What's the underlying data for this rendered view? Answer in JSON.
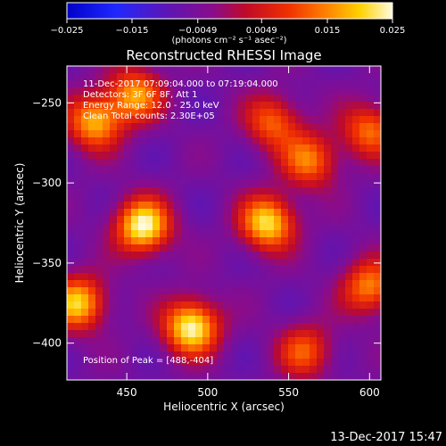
{
  "colorbar": {
    "tick_labels": [
      "−0.025",
      "−0.015",
      "−0.0049",
      "0.0049",
      "0.015",
      "0.025"
    ],
    "tick_values": [
      -0.025,
      -0.015,
      -0.0049,
      0.0049,
      0.015,
      0.025
    ],
    "range": [
      -0.025,
      0.025
    ],
    "units_text": "(photons cm⁻² s⁻¹ asec⁻²)"
  },
  "chart_data": {
    "type": "heatmap",
    "title": "Reconstructed RHESSI Image",
    "xlabel": "Heliocentric X (arcsec)",
    "ylabel": "Heliocentric Y (arcsec)",
    "xlim": [
      413,
      607
    ],
    "ylim": [
      -423,
      -227
    ],
    "x_ticks": [
      450,
      500,
      550,
      600
    ],
    "y_ticks": [
      -250,
      -300,
      -350,
      -400
    ],
    "x_tick_labels": [
      "450",
      "500",
      "550",
      "600"
    ],
    "y_tick_labels": [
      "−250",
      "−300",
      "−350",
      "−400"
    ],
    "colormap": "blue-purple-red-yellow-white",
    "annotations": [
      "11-Dec-2017 07:09:04.000 to 07:19:04.000",
      "Detectors: 3F 6F 8F, Att 1",
      "Energy Range: 12.0 - 25.0 keV",
      "Clean    Total counts: 2.30E+05"
    ],
    "peak_label": "Position of Peak = [488,-404]",
    "sources": [
      {
        "x": 460,
        "y": -327,
        "intensity": 0.025
      },
      {
        "x": 537,
        "y": -325,
        "intensity": 0.022
      },
      {
        "x": 420,
        "y": -375,
        "intensity": 0.02
      },
      {
        "x": 490,
        "y": -390,
        "intensity": 0.025
      },
      {
        "x": 455,
        "y": -245,
        "intensity": 0.016
      },
      {
        "x": 430,
        "y": -262,
        "intensity": 0.018
      },
      {
        "x": 540,
        "y": -262,
        "intensity": 0.012
      },
      {
        "x": 563,
        "y": -286,
        "intensity": 0.014
      },
      {
        "x": 600,
        "y": -267,
        "intensity": 0.013
      },
      {
        "x": 600,
        "y": -365,
        "intensity": 0.015
      },
      {
        "x": 560,
        "y": -405,
        "intensity": 0.011
      }
    ]
  },
  "footer_timestamp": "13-Dec-2017 15:47"
}
